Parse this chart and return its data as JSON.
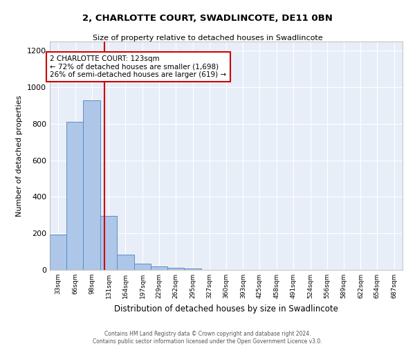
{
  "title": "2, CHARLOTTE COURT, SWADLINCOTE, DE11 0BN",
  "subtitle": "Size of property relative to detached houses in Swadlincote",
  "xlabel": "Distribution of detached houses by size in Swadlincote",
  "ylabel": "Number of detached properties",
  "bin_labels": [
    "33sqm",
    "66sqm",
    "98sqm",
    "131sqm",
    "164sqm",
    "197sqm",
    "229sqm",
    "262sqm",
    "295sqm",
    "327sqm",
    "360sqm",
    "393sqm",
    "425sqm",
    "458sqm",
    "491sqm",
    "524sqm",
    "556sqm",
    "589sqm",
    "622sqm",
    "654sqm",
    "687sqm"
  ],
  "bin_centers": [
    33,
    66,
    98,
    131,
    164,
    197,
    229,
    262,
    295,
    327,
    360,
    393,
    425,
    458,
    491,
    524,
    556,
    589,
    622,
    654,
    687
  ],
  "bar_values": [
    193,
    810,
    928,
    296,
    85,
    35,
    18,
    12,
    8,
    0,
    0,
    0,
    0,
    0,
    0,
    0,
    0,
    0,
    0,
    0,
    0
  ],
  "bar_color": "#aec6e8",
  "bar_edge_color": "#5b8ec4",
  "background_color": "#e8eef8",
  "vline_x": 123,
  "vline_color": "#cc0000",
  "annotation_text": "2 CHARLOTTE COURT: 123sqm\n← 72% of detached houses are smaller (1,698)\n26% of semi-detached houses are larger (619) →",
  "annotation_box_color": "white",
  "annotation_box_edge_color": "#cc0000",
  "ylim": [
    0,
    1250
  ],
  "yticks": [
    0,
    200,
    400,
    600,
    800,
    1000,
    1200
  ],
  "footnote": "Contains HM Land Registry data © Crown copyright and database right 2024.\nContains public sector information licensed under the Open Government Licence v3.0.",
  "bin_width": 33,
  "figsize": [
    6.0,
    5.0
  ],
  "dpi": 100
}
